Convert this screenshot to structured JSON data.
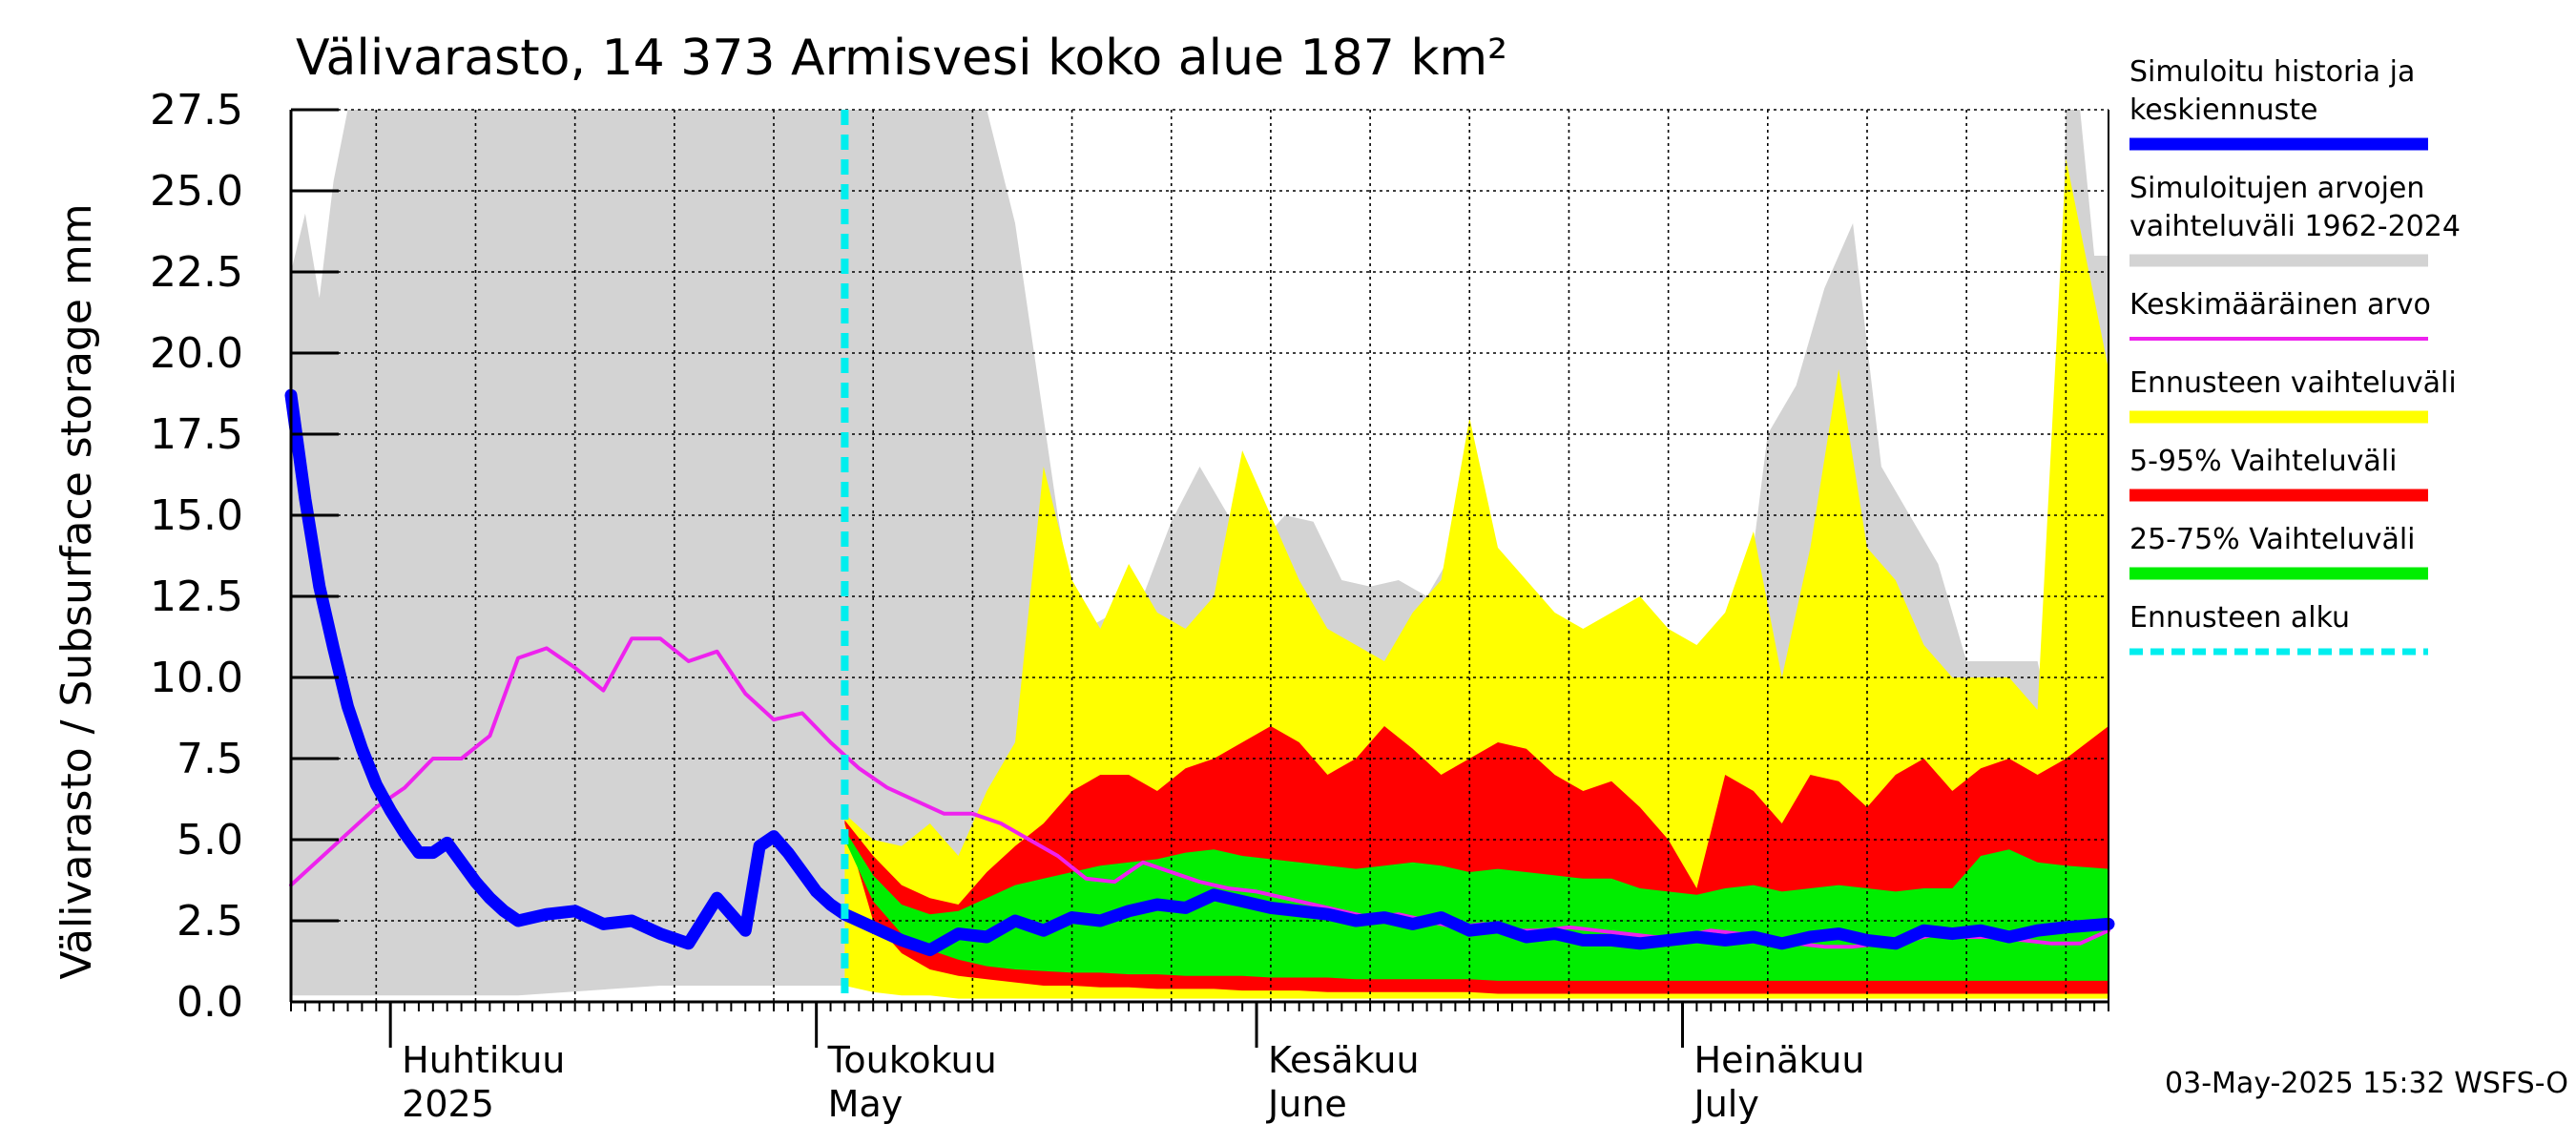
{
  "chart_data": {
    "type": "area",
    "title": "Välivarasto, 14 373 Armisvesi koko alue 187 km²",
    "ylabel": "Välivarasto / Subsurface storage  mm",
    "ylim": [
      0,
      27.5
    ],
    "y_ticks": [
      "0.0",
      "2.5",
      "5.0",
      "7.5",
      "10.0",
      "12.5",
      "15.0",
      "17.5",
      "20.0",
      "22.5",
      "25.0",
      "27.5"
    ],
    "x_range": [
      "2025-03-25",
      "2025-07-31"
    ],
    "forecast_start": "2025-05-03",
    "month_labels": [
      {
        "fi": "Huhtikuu",
        "en": "2025",
        "date": "2025-04-01"
      },
      {
        "fi": "Toukokuu",
        "en": "May",
        "date": "2025-05-01"
      },
      {
        "fi": "Kesäkuu",
        "en": "June",
        "date": "2025-06-01"
      },
      {
        "fi": "Heinäkuu",
        "en": "July",
        "date": "2025-07-01"
      }
    ],
    "grid": true,
    "legend_position": "right",
    "legend": [
      {
        "label": "Simuloitu historia ja keskiennuste",
        "color": "#0000ff",
        "kind": "thick"
      },
      {
        "label": "Simuloitujen arvojen vaihteluväli 1962-2024",
        "color": "#d3d3d3",
        "kind": "thick"
      },
      {
        "label": "Keskimääräinen arvo",
        "color": "#ee22ee",
        "kind": "thin"
      },
      {
        "label": "Ennusteen vaihteluväli",
        "color": "#ffff00",
        "kind": "thick"
      },
      {
        "label": "5-95% Vaihteluväli",
        "color": "#ff0000",
        "kind": "thick"
      },
      {
        "label": "25-75% Vaihteluväli",
        "color": "#00ee00",
        "kind": "thick"
      },
      {
        "label": "Ennusteen alku",
        "color": "#00eeee",
        "kind": "dashed"
      }
    ],
    "series": {
      "history_range": {
        "dates": [
          "2025-03-25",
          "2025-03-26",
          "2025-03-27",
          "2025-03-28",
          "2025-03-29",
          "2025-03-30",
          "2025-03-31",
          "2025-04-10",
          "2025-04-20",
          "2025-04-30",
          "2025-05-03",
          "2025-05-08",
          "2025-05-13",
          "2025-05-15",
          "2025-05-17",
          "2025-05-18",
          "2025-05-19",
          "2025-05-20",
          "2025-05-22",
          "2025-05-24",
          "2025-05-26",
          "2025-05-28",
          "2025-05-30",
          "2025-06-01",
          "2025-06-03",
          "2025-06-05",
          "2025-06-07",
          "2025-06-09",
          "2025-06-11",
          "2025-06-13",
          "2025-06-15",
          "2025-06-17",
          "2025-06-19",
          "2025-06-21",
          "2025-06-23",
          "2025-06-25",
          "2025-06-27",
          "2025-06-29",
          "2025-07-01",
          "2025-07-03",
          "2025-07-05",
          "2025-07-07",
          "2025-07-09",
          "2025-07-11",
          "2025-07-13",
          "2025-07-15",
          "2025-07-17",
          "2025-07-19",
          "2025-07-21",
          "2025-07-23",
          "2025-07-25",
          "2025-07-26",
          "2025-07-27",
          "2025-07-28",
          "2025-07-29",
          "2025-07-30",
          "2025-07-31"
        ],
        "upper": [
          22.5,
          24.3,
          21.7,
          25.3,
          27.5,
          27.5,
          27.5,
          27.5,
          27.5,
          27.5,
          27.5,
          27.5,
          27.5,
          24.0,
          18.0,
          15.0,
          12.5,
          11.5,
          12.0,
          12.5,
          14.8,
          16.5,
          15.0,
          14.0,
          15.0,
          14.8,
          13.0,
          12.8,
          13.0,
          12.5,
          14.0,
          13.0,
          12.5,
          10.5,
          10.0,
          10.5,
          9.0,
          8.5,
          9.5,
          11.5,
          10.5,
          17.5,
          19.0,
          22.0,
          24.0,
          16.5,
          15.0,
          13.5,
          10.5,
          10.5,
          10.5,
          10.5,
          8.5,
          27.5,
          27.5,
          23.0,
          23.0
        ],
        "lower": [
          0.2,
          0.2,
          0.2,
          0.2,
          0.2,
          0.2,
          0.2,
          0.2,
          0.5,
          0.5,
          0.5,
          0.4,
          0.3,
          0.3,
          0.3,
          0.3,
          0.3,
          0.3,
          0.3,
          0.3,
          0.3,
          0.3,
          0.3,
          0.3,
          0.3,
          0.3,
          0.3,
          0.3,
          0.3,
          0.3,
          0.3,
          0.3,
          0.3,
          0.3,
          0.3,
          0.3,
          0.3,
          0.3,
          0.3,
          0.3,
          0.3,
          0.3,
          0.3,
          0.3,
          0.3,
          0.3,
          0.3,
          0.3,
          0.3,
          0.3,
          0.3,
          0.3,
          0.3,
          0.3,
          0.3,
          0.3,
          0.3
        ]
      },
      "forecast_range": {
        "dates": [
          "2025-05-03",
          "2025-05-05",
          "2025-05-07",
          "2025-05-09",
          "2025-05-11",
          "2025-05-13",
          "2025-05-15",
          "2025-05-17",
          "2025-05-19",
          "2025-05-21",
          "2025-05-23",
          "2025-05-25",
          "2025-05-27",
          "2025-05-29",
          "2025-05-31",
          "2025-06-02",
          "2025-06-04",
          "2025-06-06",
          "2025-06-08",
          "2025-06-10",
          "2025-06-12",
          "2025-06-14",
          "2025-06-16",
          "2025-06-18",
          "2025-06-20",
          "2025-06-22",
          "2025-06-24",
          "2025-06-26",
          "2025-06-28",
          "2025-06-30",
          "2025-07-02",
          "2025-07-04",
          "2025-07-06",
          "2025-07-08",
          "2025-07-10",
          "2025-07-12",
          "2025-07-14",
          "2025-07-16",
          "2025-07-18",
          "2025-07-20",
          "2025-07-22",
          "2025-07-24",
          "2025-07-26",
          "2025-07-28",
          "2025-07-31"
        ],
        "upper": [
          5.8,
          5.0,
          4.8,
          5.5,
          4.5,
          6.5,
          8.0,
          16.5,
          13.0,
          11.5,
          13.5,
          12.0,
          11.5,
          12.5,
          17.0,
          15.0,
          13.0,
          11.5,
          11.0,
          10.5,
          12.0,
          13.0,
          18.0,
          14.0,
          13.0,
          12.0,
          11.5,
          12.0,
          12.5,
          11.5,
          11.0,
          12.0,
          14.5,
          10.0,
          14.0,
          19.5,
          14.0,
          13.0,
          11.0,
          10.0,
          10.0,
          10.0,
          9.0,
          26.0,
          19.5
        ],
        "lower": [
          0.5,
          0.3,
          0.2,
          0.2,
          0.1,
          0.1,
          0.1,
          0.1,
          0.1,
          0.1,
          0.1,
          0.1,
          0.1,
          0.1,
          0.1,
          0.1,
          0.1,
          0.1,
          0.1,
          0.1,
          0.1,
          0.1,
          0.1,
          0.1,
          0.1,
          0.1,
          0.1,
          0.1,
          0.1,
          0.1,
          0.1,
          0.1,
          0.1,
          0.1,
          0.1,
          0.1,
          0.1,
          0.1,
          0.1,
          0.1,
          0.1,
          0.1,
          0.1,
          0.1,
          0.1
        ]
      },
      "p5_95": {
        "dates": [
          "2025-05-03",
          "2025-05-05",
          "2025-05-07",
          "2025-05-09",
          "2025-05-11",
          "2025-05-13",
          "2025-05-15",
          "2025-05-17",
          "2025-05-19",
          "2025-05-21",
          "2025-05-23",
          "2025-05-25",
          "2025-05-27",
          "2025-05-29",
          "2025-05-31",
          "2025-06-02",
          "2025-06-04",
          "2025-06-06",
          "2025-06-08",
          "2025-06-10",
          "2025-06-12",
          "2025-06-14",
          "2025-06-16",
          "2025-06-18",
          "2025-06-20",
          "2025-06-22",
          "2025-06-24",
          "2025-06-26",
          "2025-06-28",
          "2025-06-30",
          "2025-07-02",
          "2025-07-04",
          "2025-07-06",
          "2025-07-08",
          "2025-07-10",
          "2025-07-12",
          "2025-07-14",
          "2025-07-16",
          "2025-07-18",
          "2025-07-20",
          "2025-07-22",
          "2025-07-24",
          "2025-07-26",
          "2025-07-28",
          "2025-07-31"
        ],
        "upper": [
          5.6,
          4.5,
          3.6,
          3.2,
          3.0,
          4.0,
          4.8,
          5.5,
          6.5,
          7.0,
          7.0,
          6.5,
          7.2,
          7.5,
          8.0,
          8.5,
          8.0,
          7.0,
          7.5,
          8.5,
          7.8,
          7.0,
          7.5,
          8.0,
          7.8,
          7.0,
          6.5,
          6.8,
          6.0,
          5.0,
          3.5,
          7.0,
          6.5,
          5.5,
          7.0,
          6.8,
          6.0,
          7.0,
          7.5,
          6.5,
          7.2,
          7.5,
          7.0,
          7.5,
          8.5
        ],
        "lower": [
          5.5,
          2.5,
          1.5,
          1.0,
          0.8,
          0.7,
          0.6,
          0.5,
          0.5,
          0.45,
          0.45,
          0.4,
          0.4,
          0.4,
          0.35,
          0.35,
          0.35,
          0.3,
          0.3,
          0.3,
          0.3,
          0.3,
          0.3,
          0.25,
          0.25,
          0.25,
          0.25,
          0.25,
          0.25,
          0.25,
          0.25,
          0.25,
          0.25,
          0.25,
          0.25,
          0.25,
          0.25,
          0.25,
          0.25,
          0.25,
          0.25,
          0.25,
          0.25,
          0.25,
          0.25
        ]
      },
      "p25_75": {
        "dates": [
          "2025-05-03",
          "2025-05-05",
          "2025-05-07",
          "2025-05-09",
          "2025-05-11",
          "2025-05-13",
          "2025-05-15",
          "2025-05-17",
          "2025-05-19",
          "2025-05-21",
          "2025-05-23",
          "2025-05-25",
          "2025-05-27",
          "2025-05-29",
          "2025-05-31",
          "2025-06-02",
          "2025-06-04",
          "2025-06-06",
          "2025-06-08",
          "2025-06-10",
          "2025-06-12",
          "2025-06-14",
          "2025-06-16",
          "2025-06-18",
          "2025-06-20",
          "2025-06-22",
          "2025-06-24",
          "2025-06-26",
          "2025-06-28",
          "2025-06-30",
          "2025-07-02",
          "2025-07-04",
          "2025-07-06",
          "2025-07-08",
          "2025-07-10",
          "2025-07-12",
          "2025-07-14",
          "2025-07-16",
          "2025-07-18",
          "2025-07-20",
          "2025-07-22",
          "2025-07-24",
          "2025-07-26",
          "2025-07-28",
          "2025-07-31"
        ],
        "upper": [
          5.3,
          3.9,
          3.0,
          2.7,
          2.8,
          3.2,
          3.6,
          3.8,
          4.0,
          4.2,
          4.3,
          4.4,
          4.6,
          4.7,
          4.5,
          4.4,
          4.3,
          4.2,
          4.1,
          4.2,
          4.3,
          4.2,
          4.0,
          4.1,
          4.0,
          3.9,
          3.8,
          3.8,
          3.5,
          3.4,
          3.3,
          3.5,
          3.6,
          3.4,
          3.5,
          3.6,
          3.5,
          3.4,
          3.5,
          3.5,
          4.5,
          4.7,
          4.3,
          4.2,
          4.1
        ],
        "lower": [
          5.0,
          3.1,
          2.1,
          1.6,
          1.3,
          1.1,
          1.0,
          0.95,
          0.9,
          0.9,
          0.85,
          0.85,
          0.8,
          0.8,
          0.8,
          0.75,
          0.75,
          0.75,
          0.7,
          0.7,
          0.7,
          0.7,
          0.7,
          0.65,
          0.65,
          0.65,
          0.65,
          0.65,
          0.65,
          0.65,
          0.65,
          0.65,
          0.65,
          0.65,
          0.65,
          0.65,
          0.65,
          0.65,
          0.65,
          0.65,
          0.65,
          0.65,
          0.65,
          0.65,
          0.65
        ]
      },
      "mean": {
        "dates": [
          "2025-03-25",
          "2025-03-27",
          "2025-03-29",
          "2025-03-31",
          "2025-04-02",
          "2025-04-04",
          "2025-04-06",
          "2025-04-08",
          "2025-04-10",
          "2025-04-12",
          "2025-04-14",
          "2025-04-16",
          "2025-04-18",
          "2025-04-20",
          "2025-04-22",
          "2025-04-24",
          "2025-04-26",
          "2025-04-28",
          "2025-04-30",
          "2025-05-02",
          "2025-05-04",
          "2025-05-06",
          "2025-05-08",
          "2025-05-10",
          "2025-05-12",
          "2025-05-14",
          "2025-05-16",
          "2025-05-18",
          "2025-05-20",
          "2025-05-22",
          "2025-05-24",
          "2025-05-26",
          "2025-05-28",
          "2025-05-30",
          "2025-06-01",
          "2025-06-03",
          "2025-06-05",
          "2025-06-07",
          "2025-06-09",
          "2025-06-11",
          "2025-06-13",
          "2025-06-15",
          "2025-06-17",
          "2025-06-19",
          "2025-06-21",
          "2025-06-23",
          "2025-06-25",
          "2025-06-27",
          "2025-06-29",
          "2025-07-01",
          "2025-07-03",
          "2025-07-05",
          "2025-07-07",
          "2025-07-09",
          "2025-07-11",
          "2025-07-13",
          "2025-07-15",
          "2025-07-17",
          "2025-07-19",
          "2025-07-21",
          "2025-07-23",
          "2025-07-25",
          "2025-07-27",
          "2025-07-29",
          "2025-07-31"
        ],
        "values": [
          3.6,
          4.4,
          5.2,
          6.0,
          6.6,
          7.5,
          7.5,
          8.2,
          10.6,
          10.9,
          10.3,
          9.6,
          11.2,
          11.2,
          10.5,
          10.8,
          9.5,
          8.7,
          8.9,
          8.0,
          7.2,
          6.6,
          6.2,
          5.8,
          5.8,
          5.5,
          5.0,
          4.5,
          3.8,
          3.7,
          4.3,
          4.0,
          3.7,
          3.5,
          3.4,
          3.2,
          3.0,
          2.8,
          2.6,
          2.7,
          2.5,
          2.3,
          2.4,
          2.2,
          2.2,
          2.3,
          2.2,
          2.1,
          2.0,
          2.0,
          2.2,
          2.1,
          1.9,
          1.8,
          1.7,
          1.7,
          1.8,
          1.9,
          2.1,
          2.0,
          2.0,
          1.9,
          1.8,
          1.8,
          2.2
        ]
      },
      "simulated": {
        "dates": [
          "2025-03-25",
          "2025-03-26",
          "2025-03-27",
          "2025-03-28",
          "2025-03-29",
          "2025-03-30",
          "2025-03-31",
          "2025-04-01",
          "2025-04-02",
          "2025-04-03",
          "2025-04-04",
          "2025-04-05",
          "2025-04-06",
          "2025-04-07",
          "2025-04-08",
          "2025-04-09",
          "2025-04-10",
          "2025-04-12",
          "2025-04-14",
          "2025-04-16",
          "2025-04-18",
          "2025-04-20",
          "2025-04-22",
          "2025-04-24",
          "2025-04-26",
          "2025-04-27",
          "2025-04-28",
          "2025-04-29",
          "2025-04-30",
          "2025-05-01",
          "2025-05-02",
          "2025-05-03",
          "2025-05-05",
          "2025-05-07",
          "2025-05-09",
          "2025-05-11",
          "2025-05-13",
          "2025-05-15",
          "2025-05-17",
          "2025-05-19",
          "2025-05-21",
          "2025-05-23",
          "2025-05-25",
          "2025-05-27",
          "2025-05-29",
          "2025-05-31",
          "2025-06-02",
          "2025-06-04",
          "2025-06-06",
          "2025-06-08",
          "2025-06-10",
          "2025-06-12",
          "2025-06-14",
          "2025-06-16",
          "2025-06-18",
          "2025-06-20",
          "2025-06-22",
          "2025-06-24",
          "2025-06-26",
          "2025-06-28",
          "2025-06-30",
          "2025-07-02",
          "2025-07-04",
          "2025-07-06",
          "2025-07-08",
          "2025-07-10",
          "2025-07-12",
          "2025-07-14",
          "2025-07-16",
          "2025-07-18",
          "2025-07-20",
          "2025-07-22",
          "2025-07-24",
          "2025-07-26",
          "2025-07-28",
          "2025-07-31"
        ],
        "values": [
          18.7,
          15.5,
          12.8,
          10.9,
          9.1,
          7.8,
          6.7,
          5.9,
          5.2,
          4.6,
          4.6,
          4.9,
          4.3,
          3.7,
          3.2,
          2.8,
          2.5,
          2.7,
          2.8,
          2.4,
          2.5,
          2.1,
          1.8,
          3.2,
          2.2,
          4.8,
          5.1,
          4.6,
          4.0,
          3.4,
          3.0,
          2.7,
          2.3,
          1.9,
          1.6,
          2.1,
          2.0,
          2.5,
          2.2,
          2.6,
          2.5,
          2.8,
          3.0,
          2.9,
          3.3,
          3.1,
          2.9,
          2.8,
          2.7,
          2.5,
          2.6,
          2.4,
          2.6,
          2.2,
          2.3,
          2.0,
          2.1,
          1.9,
          1.9,
          1.8,
          1.9,
          2.0,
          1.9,
          2.0,
          1.8,
          2.0,
          2.1,
          1.9,
          1.8,
          2.2,
          2.1,
          2.2,
          2.0,
          2.2,
          2.3,
          2.4
        ]
      }
    }
  },
  "footer": {
    "timestamp": "03-May-2025 15:32 WSFS-O"
  }
}
